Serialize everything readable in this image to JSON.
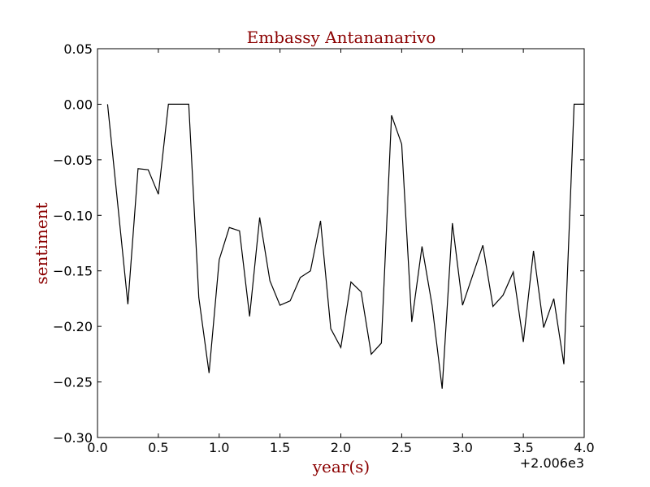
{
  "chart_data": {
    "type": "line",
    "title": "Embassy Antananarivo",
    "xlabel": "year(s)",
    "ylabel": "sentiment",
    "x_offset_label": "+2.006e3",
    "xlim": [
      0.0,
      4.0
    ],
    "ylim": [
      -0.3,
      0.05
    ],
    "xticks": [
      0.0,
      0.5,
      1.0,
      1.5,
      2.0,
      2.5,
      3.0,
      3.5,
      4.0
    ],
    "xtick_labels": [
      "0.0",
      "0.5",
      "1.0",
      "1.5",
      "2.0",
      "2.5",
      "3.0",
      "3.5",
      "4.0"
    ],
    "yticks": [
      0.05,
      0.0,
      -0.05,
      -0.1,
      -0.15,
      -0.2,
      -0.25,
      -0.3
    ],
    "ytick_labels": [
      "0.05",
      "0.00",
      "−0.05",
      "−0.10",
      "−0.15",
      "−0.20",
      "−0.25",
      "−0.30"
    ],
    "title_color": "#8b0000",
    "label_color": "#8b0000",
    "line_color": "#000000",
    "grid": false,
    "series": [
      {
        "name": "sentiment",
        "x": [
          0.083,
          0.25,
          0.333,
          0.417,
          0.5,
          0.583,
          0.75,
          0.833,
          0.917,
          1.0,
          1.083,
          1.167,
          1.25,
          1.333,
          1.417,
          1.5,
          1.583,
          1.667,
          1.75,
          1.833,
          1.917,
          2.0,
          2.083,
          2.167,
          2.25,
          2.333,
          2.417,
          2.5,
          2.583,
          2.667,
          2.75,
          2.833,
          2.917,
          3.0,
          3.167,
          3.25,
          3.333,
          3.417,
          3.5,
          3.583,
          3.667,
          3.75,
          3.833,
          3.917,
          4.0
        ],
        "y": [
          0.0,
          -0.18,
          -0.058,
          -0.059,
          -0.081,
          0.0,
          0.0,
          -0.174,
          -0.242,
          -0.14,
          -0.111,
          -0.114,
          -0.191,
          -0.102,
          -0.159,
          -0.181,
          -0.177,
          -0.156,
          -0.15,
          -0.105,
          -0.202,
          -0.219,
          -0.16,
          -0.169,
          -0.225,
          -0.215,
          -0.01,
          -0.036,
          -0.196,
          -0.128,
          -0.181,
          -0.256,
          -0.107,
          -0.181,
          -0.127,
          -0.182,
          -0.172,
          -0.151,
          -0.214,
          -0.132,
          -0.201,
          -0.175,
          -0.234,
          0.0,
          0.0
        ]
      }
    ]
  }
}
